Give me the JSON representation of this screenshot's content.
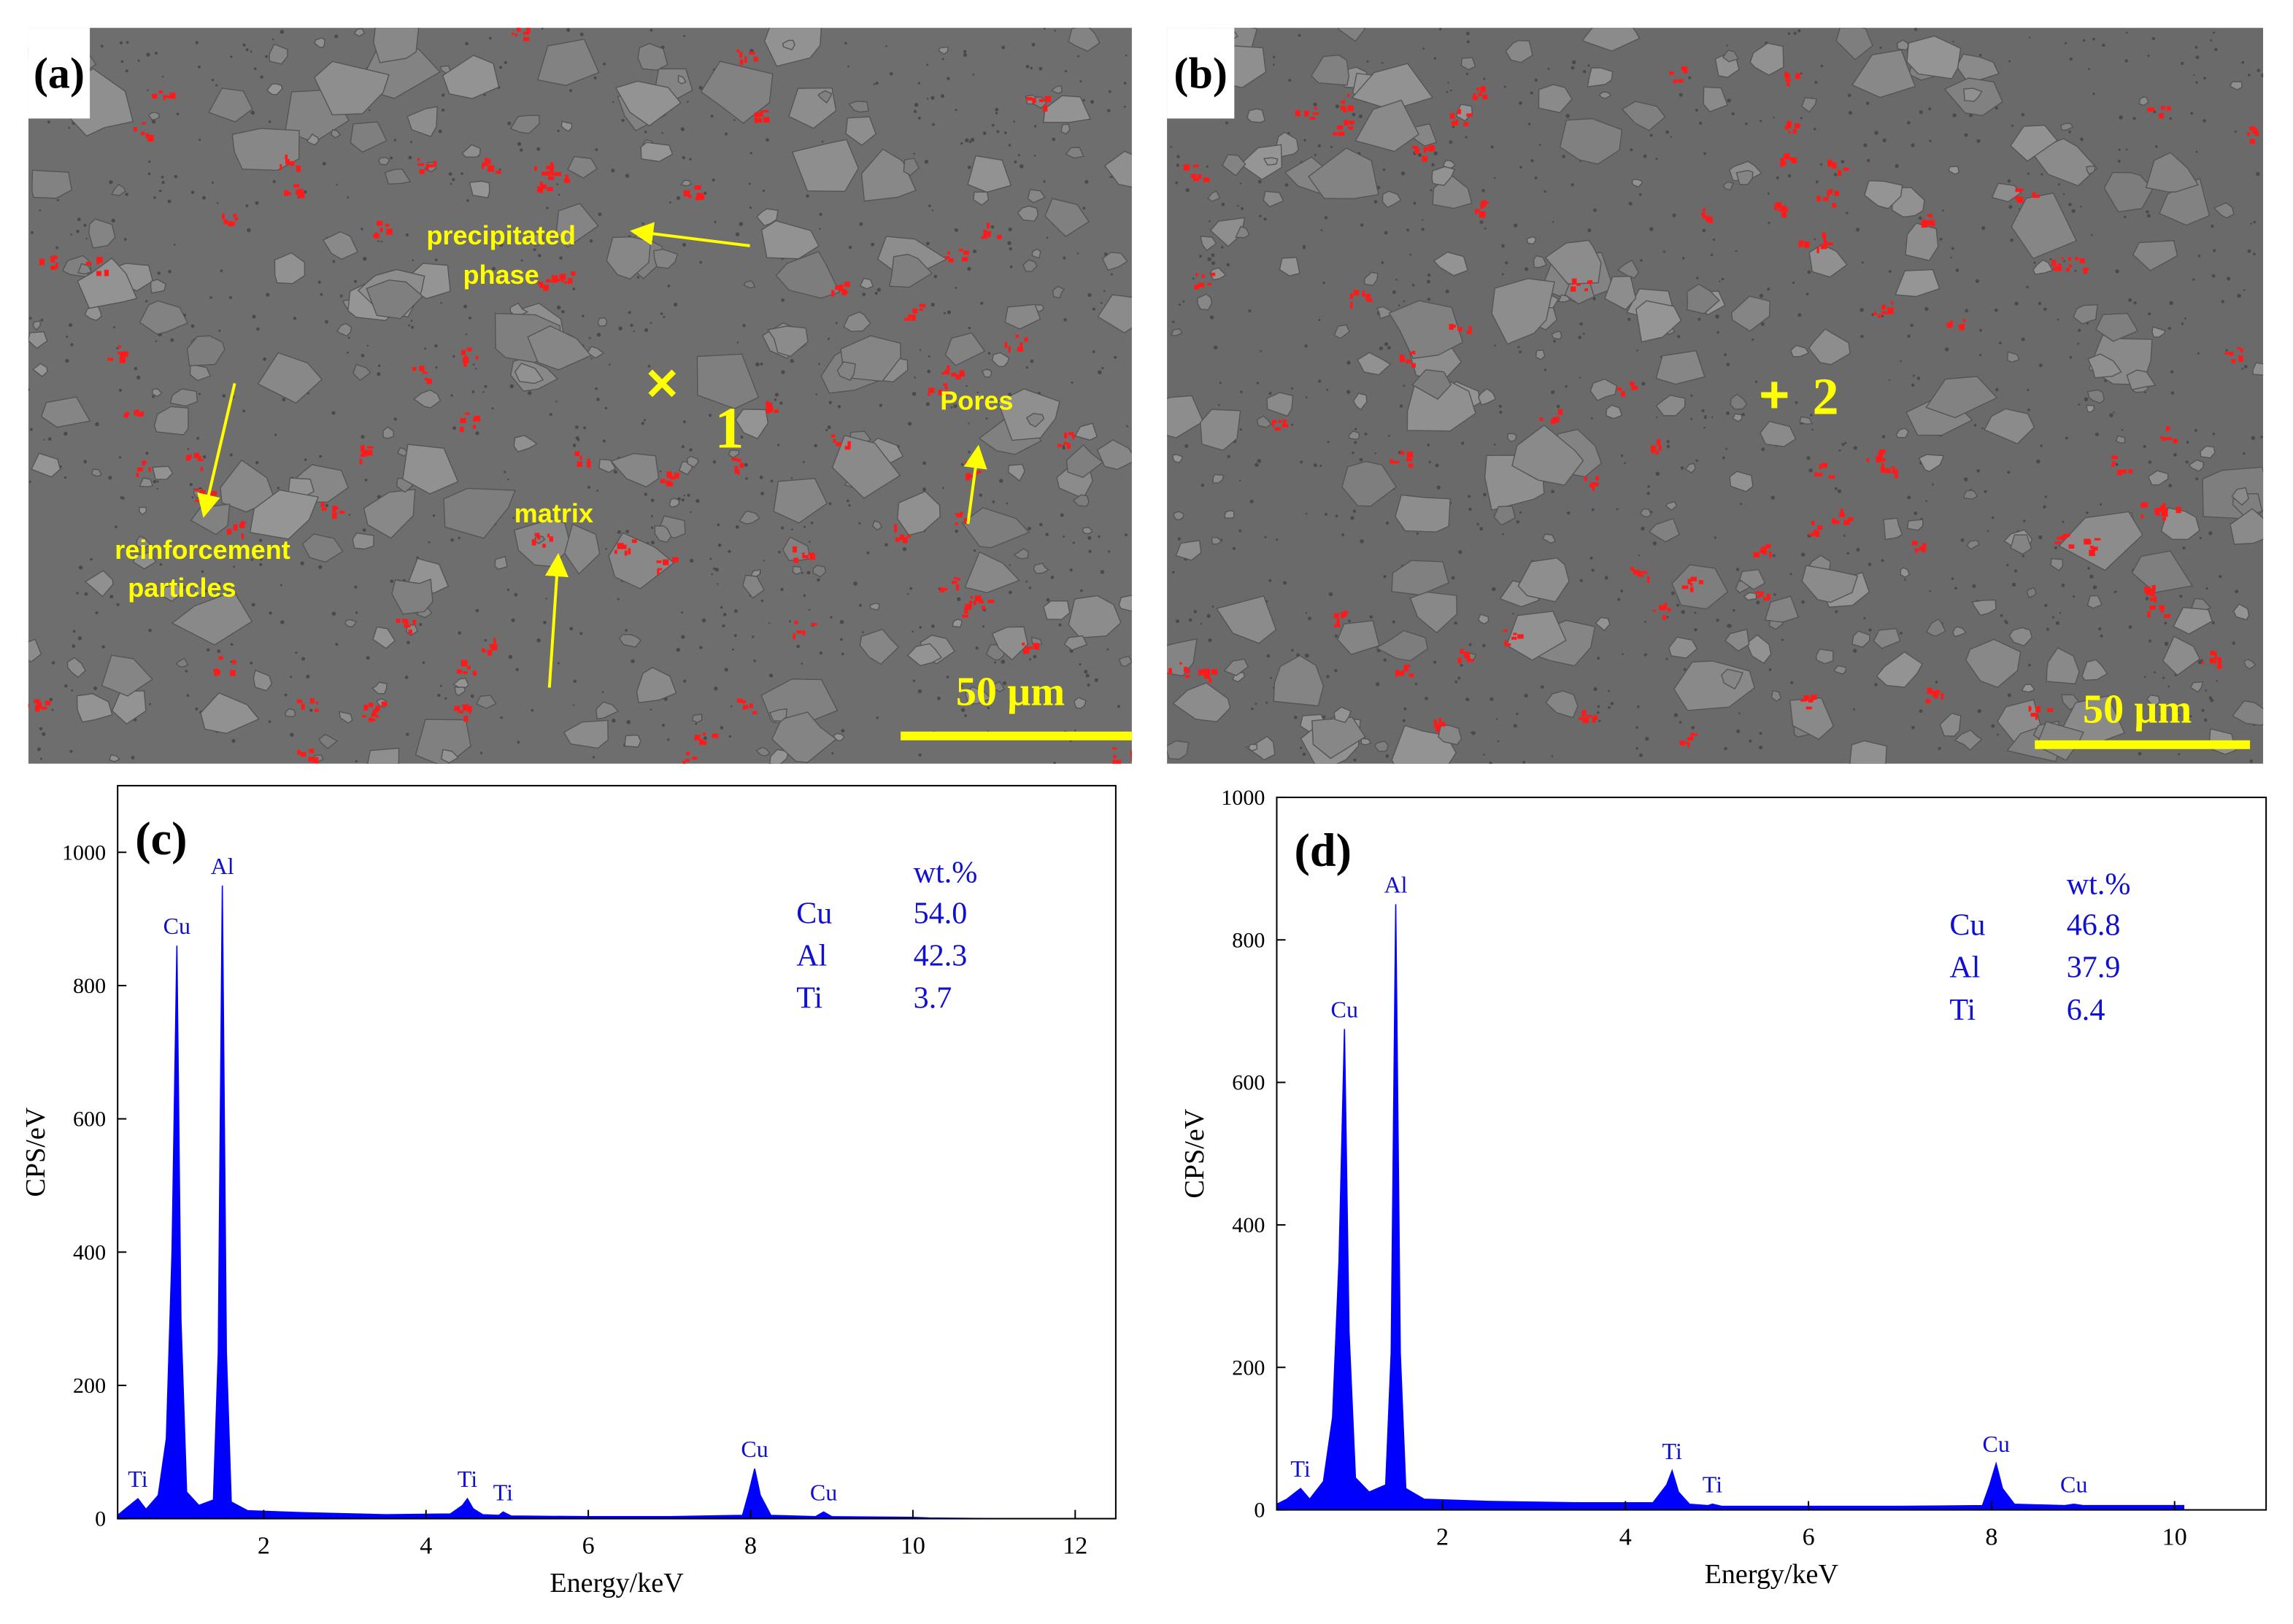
{
  "panels": [
    {
      "label": "(a)",
      "annotations": [
        "precipitated",
        "phase",
        "reinforcement",
        "particles",
        "matrix",
        "Pores"
      ],
      "point": "1",
      "scale_bar": "50 µm"
    },
    {
      "label": "(b)",
      "point": "2",
      "scale_bar": "50 µm"
    }
  ],
  "chart_data": [
    {
      "type": "area",
      "panel_label": "(c)",
      "y_label": "CPS/eV",
      "x_label": "Energy/keV",
      "color": "#0000ff",
      "x": [
        0.2,
        0.3,
        0.45,
        0.55,
        0.7,
        0.8,
        0.87,
        0.93,
        0.98,
        1.05,
        1.2,
        1.38,
        1.44,
        1.49,
        1.54,
        1.6,
        1.8,
        2.5,
        3.5,
        4.3,
        4.45,
        4.51,
        4.58,
        4.7,
        4.9,
        4.95,
        5.05,
        6,
        7,
        7.9,
        7.98,
        8.05,
        8.12,
        8.25,
        8.8,
        8.9,
        9,
        10,
        10.2,
        11,
        12.5
      ],
      "values": [
        5,
        15,
        30,
        14,
        35,
        120,
        400,
        860,
        300,
        40,
        20,
        28,
        250,
        950,
        250,
        25,
        12,
        9,
        6,
        7,
        20,
        30,
        15,
        6,
        5,
        10,
        4,
        3,
        3,
        5,
        40,
        75,
        35,
        5,
        3,
        10,
        3,
        2,
        1,
        0,
        0
      ],
      "xlim": [
        0.2,
        12.5
      ],
      "ylim": [
        0,
        1100
      ],
      "xticks": [
        2,
        4,
        6,
        8,
        10,
        12
      ],
      "yticks": [
        0,
        200,
        400,
        600,
        800,
        1000
      ],
      "annotations": [
        {
          "text": "Ti",
          "x": 0.45
        },
        {
          "text": "Cu",
          "x": 0.93
        },
        {
          "text": "Al",
          "x": 1.49
        },
        {
          "text": "Ti",
          "x": 4.51
        },
        {
          "text": "Ti",
          "x": 4.95
        },
        {
          "text": "Cu",
          "x": 8.05
        },
        {
          "text": "Cu",
          "x": 8.9
        }
      ],
      "table": {
        "header": "wt.%",
        "rows": [
          [
            "Cu",
            "54.0"
          ],
          [
            "Al",
            "42.3"
          ],
          [
            "Ti",
            "3.7"
          ]
        ]
      }
    },
    {
      "type": "area",
      "panel_label": "(d)",
      "y_label": "CPS/eV",
      "x_label": "Energy/keV",
      "color": "#0000ff",
      "x": [
        0.19,
        0.3,
        0.45,
        0.55,
        0.7,
        0.8,
        0.87,
        0.93,
        0.98,
        1.05,
        1.2,
        1.38,
        1.44,
        1.49,
        1.54,
        1.6,
        1.8,
        2.5,
        3.5,
        4.3,
        4.45,
        4.51,
        4.58,
        4.7,
        4.9,
        4.95,
        5.05,
        6,
        7,
        7.9,
        7.98,
        8.05,
        8.12,
        8.25,
        8.8,
        8.9,
        9,
        10,
        10.1
      ],
      "values": [
        8,
        15,
        30,
        15,
        40,
        130,
        350,
        675,
        250,
        45,
        25,
        35,
        220,
        850,
        220,
        30,
        15,
        12,
        10,
        10,
        35,
        55,
        25,
        8,
        6,
        8,
        5,
        5,
        5,
        6,
        35,
        65,
        30,
        8,
        6,
        8,
        6,
        6,
        6
      ],
      "xlim": [
        0.19,
        11
      ],
      "ylim": [
        0,
        1000
      ],
      "xticks": [
        2,
        4,
        6,
        8,
        10
      ],
      "yticks": [
        0,
        200,
        400,
        600,
        800,
        1000
      ],
      "annotations": [
        {
          "text": "Ti",
          "x": 0.45
        },
        {
          "text": "Cu",
          "x": 0.93
        },
        {
          "text": "Al",
          "x": 1.49
        },
        {
          "text": "Ti",
          "x": 4.51
        },
        {
          "text": "Ti",
          "x": 4.95
        },
        {
          "text": "Cu",
          "x": 8.05
        },
        {
          "text": "Cu",
          "x": 8.9
        }
      ],
      "table": {
        "header": "wt.%",
        "rows": [
          [
            "Cu",
            "46.8"
          ],
          [
            "Al",
            "37.9"
          ],
          [
            "Ti",
            "6.4"
          ]
        ]
      }
    }
  ]
}
